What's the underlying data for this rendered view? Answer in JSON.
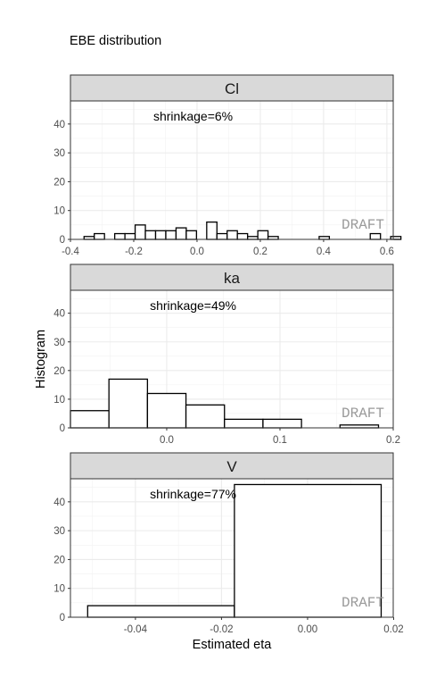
{
  "chart_data": {
    "type": "bar",
    "title": "EBE distribution",
    "xlabel": "Estimated eta",
    "ylabel": "Histogram",
    "ylim": [
      0,
      48
    ],
    "y_ticks": [
      0,
      10,
      20,
      30,
      40
    ],
    "grid": true,
    "watermark": "DRAFT",
    "facets": [
      {
        "label": "Cl",
        "annotation": "shrinkage=6%",
        "xlim": [
          -0.4,
          0.62
        ],
        "x_ticks": [
          -0.4,
          -0.2,
          0.0,
          0.2,
          0.4,
          0.6
        ],
        "x_tick_labels": [
          "-0.4",
          "-0.2",
          "0.0",
          "0.2",
          "0.4",
          "0.6"
        ],
        "bin_start": -0.357,
        "bin_width": 0.0323,
        "counts": [
          1,
          2,
          0,
          2,
          2,
          5,
          3,
          3,
          3,
          4,
          3,
          0,
          6,
          2,
          3,
          2,
          1,
          3,
          1,
          0,
          0,
          0,
          0,
          1,
          0,
          0,
          0,
          0,
          2,
          0,
          1
        ]
      },
      {
        "label": "ka",
        "annotation": "shrinkage=49%",
        "xlim": [
          -0.085,
          0.2
        ],
        "x_ticks": [
          0.0,
          0.1,
          0.2
        ],
        "x_tick_labels": [
          "0.0",
          "0.1",
          "0.2"
        ],
        "bin_start": -0.085,
        "bin_width": 0.034,
        "counts": [
          6,
          17,
          12,
          8,
          3,
          3,
          0,
          1
        ]
      },
      {
        "label": "V",
        "annotation": "shrinkage=77%",
        "xlim": [
          -0.0551,
          0.0199
        ],
        "x_ticks": [
          -0.04,
          -0.02,
          0.0,
          0.02
        ],
        "x_tick_labels": [
          "-0.04",
          "-0.02",
          "0.00",
          "0.02"
        ],
        "bin_start": -0.0511,
        "bin_width": 0.0341,
        "counts": [
          4,
          46
        ]
      }
    ]
  }
}
